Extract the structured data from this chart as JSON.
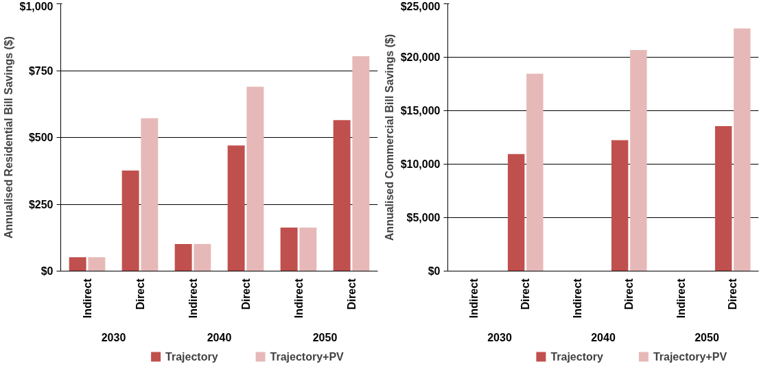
{
  "chart_data": [
    {
      "type": "bar",
      "ylabel": "Annualised Residential Bill Savings ($)",
      "categories": [
        "Indirect",
        "Direct",
        "Indirect",
        "Direct",
        "Indirect",
        "Direct"
      ],
      "annotations": [
        "2030",
        "2040",
        "2050"
      ],
      "series": [
        {
          "name": "Trajectory",
          "color": "#c0504d",
          "values": [
            52,
            376,
            101,
            470,
            163,
            565
          ]
        },
        {
          "name": "Trajectory+PV",
          "color": "#e6b9b8",
          "values": [
            52,
            572,
            101,
            690,
            163,
            804
          ]
        }
      ],
      "ylim": [
        0,
        1000
      ],
      "yticks": [
        {
          "value": 0,
          "label": "$0"
        },
        {
          "value": 250,
          "label": "$250"
        },
        {
          "value": 500,
          "label": "$500"
        },
        {
          "value": 750,
          "label": "$750"
        },
        {
          "value": 1000,
          "label": "$1,000"
        }
      ],
      "grid": "y",
      "legend": "bottom"
    },
    {
      "type": "bar",
      "ylabel": "Annualised Commercial Bill Savings ($)",
      "categories": [
        "Indirect",
        "Direct",
        "Indirect",
        "Direct",
        "Indirect",
        "Direct"
      ],
      "annotations": [
        "2030",
        "2040",
        "2050"
      ],
      "series": [
        {
          "name": "Trajectory",
          "color": "#c0504d",
          "values": [
            0,
            10950,
            0,
            12250,
            0,
            13560
          ]
        },
        {
          "name": "Trajectory+PV",
          "color": "#e6b9b8",
          "values": [
            0,
            18460,
            0,
            20670,
            0,
            22700
          ]
        }
      ],
      "ylim": [
        0,
        25000
      ],
      "yticks": [
        {
          "value": 0,
          "label": "$0"
        },
        {
          "value": 5000,
          "label": "$5,000"
        },
        {
          "value": 10000,
          "label": "$10,000"
        },
        {
          "value": 15000,
          "label": "$15,000"
        },
        {
          "value": 20000,
          "label": "$20,000"
        },
        {
          "value": 25000,
          "label": "$25,000"
        }
      ],
      "grid": "y",
      "legend": "bottom"
    }
  ]
}
